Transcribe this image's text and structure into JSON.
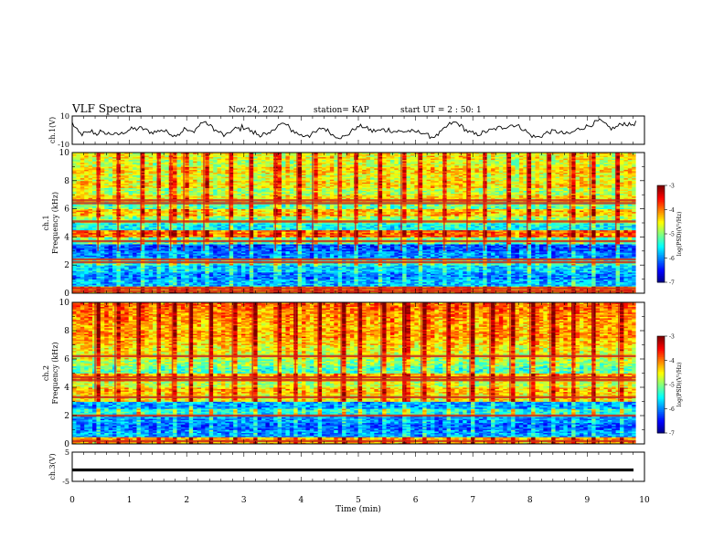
{
  "header": {
    "title": "VLF Spectra",
    "date": "Nov.24, 2022",
    "station": "station= KAP",
    "start": "start  UT =   2 : 50: 1"
  },
  "chart_data": [
    {
      "id": "ch1-waveform",
      "type": "line",
      "ylabel": "ch.1(V)",
      "ylim": [
        -10,
        10
      ],
      "yticks": [
        "10",
        "-10"
      ],
      "xlim": [
        0,
        10
      ],
      "series": [
        {
          "values": [
            5.1,
            3.2,
            1.5,
            -0.4,
            -1.8,
            -2.5,
            -2.9,
            -2.4,
            -1.8,
            -2.6,
            -1.9,
            -1.0,
            -0.7,
            -1.7,
            -2.3,
            -2.8,
            -1.7,
            -0.8,
            -2.1,
            -2.2,
            -1.6,
            -2.8,
            -2.3,
            -2.5,
            -2.4,
            -2.6,
            -3.1,
            -3.2,
            -3.0,
            -2.5,
            -2.5,
            -1.6,
            -1.0,
            -0.9,
            0.2,
            0.3,
            0.8,
            0.9,
            0.9,
            0.7,
            1.3,
            1.3,
            1.3,
            0.9,
            0.7,
            -0.2,
            -0.6,
            -1.1,
            -1.6,
            -1.4,
            -1.1,
            -1.2,
            -0.8,
            -0.1,
            0.5,
            -0.4,
            -0.8,
            -1.1,
            -1.3,
            -1.6,
            -2.6,
            -3.4,
            -4.1,
            -2.9,
            -2.3,
            -2.9,
            -1.5,
            -0.2,
            0.9,
            1.0,
            -0.6,
            -1.3,
            -0.8,
            -1.4,
            -0.3,
            0.8,
            2.3,
            2.8,
            4.7,
            5.9,
            5.7,
            4.6,
            4.8,
            3.2,
            2.7,
            2.3,
            1.0,
            -0.3,
            -1.2,
            -1.2,
            -1.8,
            -2.8,
            -3.8,
            -3.9,
            -3.4,
            -1.8,
            -0.8,
            -0.6,
            0.2,
            1.0,
            1.2,
            1.2,
            0.8,
            2.5,
            1.8,
            1.7,
            1.6,
            0.7,
            -0.4,
            -1.4,
            -1.9,
            -1.4,
            -2.8,
            -2.9,
            -3.3,
            -3.5,
            -2.5,
            -3.2,
            -4.1,
            -3.4,
            -2.5,
            -1.2,
            0.8,
            1.7,
            2.5,
            3.7,
            3.6,
            4.3,
            4.4,
            4.5,
            3.1,
            2.7,
            1.0,
            0.0,
            -0.2,
            -1.2,
            -1.9,
            -2.6,
            -3.0,
            -3.6,
            -4.1,
            -4.0,
            -2.9,
            -3.0,
            -3.9,
            -3.2,
            -2.5,
            -1.9,
            -1.6,
            -0.8,
            0.6,
            1.4,
            1.5,
            1.1,
            0.3,
            -0.4,
            -1.2,
            -1.9,
            -3.4,
            -4.0,
            -4.1,
            -4.3,
            -4.8,
            -4.8,
            -4.8,
            -4.8,
            -4.3,
            -3.2,
            -2.3,
            -0.9,
            -0.3,
            0.9,
            1.7,
            1.4,
            2.7,
            2.6,
            2.6,
            2.6,
            1.5,
            1.1,
            0.6,
            0.1,
            -0.9,
            -0.4,
            -0.4,
            -0.2,
            -0.5,
            -0.2,
            0.3,
            0.4,
            -0.4,
            0.1,
            0.5,
            0.1,
            -0.7,
            -0.8,
            -0.8,
            -0.9,
            -0.7,
            -1.1,
            -1.0,
            -1.0,
            -0.9,
            -0.9,
            -0.4,
            -0.6,
            -0.8,
            -1.5,
            -1.5,
            -1.1,
            -1.4,
            -1.4,
            -1.2,
            -2.1,
            -2.2,
            -3.6,
            -3.8,
            -4.4,
            -4.5,
            -4.9,
            -3.9,
            -4.2,
            -3.1,
            -2.1,
            -1.1,
            -0.3,
            1.2,
            2.2,
            3.2,
            4.2,
            4.8,
            4.8,
            5.4,
            5.3,
            4.4,
            4.0,
            2.8,
            2.3,
            0.8,
            0.0,
            -0.9,
            -1.5,
            -2.0,
            -2.1,
            -3.0,
            -3.0,
            -3.0,
            -2.6,
            -2.5,
            -1.7,
            -1.6,
            -1.1,
            -0.5,
            -0.4,
            -0.1,
            0.1,
            0.6,
            1.0,
            1.2,
            1.8,
            1.7,
            1.6,
            2.5,
            2.4,
            2.6,
            3.2,
            3.7,
            3.6,
            3.7,
            3.4,
            3.1,
            2.6,
            1.9,
            1.3,
            0.5,
            -0.4,
            -1.4,
            -2.5,
            -3.5,
            -3.9,
            -4.5,
            -4.8,
            -4.9,
            -4.8,
            -4.4,
            -3.9,
            -3.1,
            -2.4,
            -1.8,
            -1.6,
            -1.2,
            -1.1,
            -0.8,
            -0.8,
            -1.1,
            -1.3,
            -1.8,
            -2.0,
            -2.3,
            -2.4,
            -2.7,
            -2.6,
            -2.4,
            -2.0,
            -1.1,
            -0.5,
            0.1,
            0.8,
            1.0,
            1.4,
            1.9,
            2.1,
            2.6,
            3.0,
            3.3,
            3.9,
            4.5,
            5.2,
            5.8,
            6.3,
            6.4,
            6.1,
            5.2,
            4.2,
            3.2,
            2.4,
            1.8,
            1.3,
            1.2,
            1.6,
            2.1,
            2.8,
            3.5,
            4.3,
            4.7,
            4.8,
            4.6,
            4.1,
            3.8,
            3.8,
            4.1,
            4.6,
            5.2
          ]
        }
      ]
    },
    {
      "id": "ch1-spectrogram",
      "type": "heatmap",
      "ylabel": "ch.1\nFrequency  (kHz)",
      "xlim": [
        0,
        10
      ],
      "ylim": [
        0,
        10
      ],
      "yticks": [
        0,
        2,
        4,
        6,
        8,
        10
      ],
      "freq_bins_khz": [
        0.0,
        0.5,
        1.0,
        1.5,
        2.0,
        2.5,
        3.0,
        3.5,
        4.0,
        4.5,
        5.0,
        5.5,
        6.0,
        6.5,
        7.0,
        7.5,
        8.0,
        8.5,
        9.0,
        9.5
      ],
      "band_log_psd": [
        -4.0,
        -5.8,
        -6.0,
        -5.7,
        -5.3,
        -6.0,
        -6.2,
        -5.1,
        -3.9,
        -5.5,
        -4.9,
        -4.3,
        -5.1,
        -4.4,
        -4.8,
        -4.4,
        -4.6,
        -4.4,
        -4.7,
        -4.5
      ],
      "narrowband_lines_khz": [
        0.15,
        0.35,
        2.2,
        2.4,
        3.7,
        5.1,
        6.4,
        6.6
      ],
      "impulse_times_min": [
        0.45,
        0.8,
        1.2,
        1.5,
        1.72,
        1.95,
        2.3,
        2.75,
        3.1,
        3.55,
        3.93,
        4.2,
        4.65,
        4.95,
        5.35,
        5.75,
        6.05,
        6.5,
        6.9,
        7.2,
        7.6,
        7.95,
        8.3,
        8.7,
        9.05,
        9.5
      ],
      "colorbar": {
        "label": "log(PSD)(V²/Hz)",
        "range": [
          -7,
          -3
        ],
        "ticks": [
          "-3",
          "-4",
          "-5",
          "-6",
          "-7"
        ]
      }
    },
    {
      "id": "ch2-spectrogram",
      "type": "heatmap",
      "ylabel": "ch.2\nFrequency  (kHz)",
      "xlim": [
        0,
        10
      ],
      "ylim": [
        0,
        10
      ],
      "yticks": [
        0,
        2,
        4,
        6,
        8,
        10
      ],
      "freq_bins_khz": [
        0.0,
        0.5,
        1.0,
        1.5,
        2.0,
        2.5,
        3.0,
        3.5,
        4.0,
        4.5,
        5.0,
        5.5,
        6.0,
        6.5,
        7.0,
        7.5,
        8.0,
        8.5,
        9.0,
        9.5
      ],
      "band_log_psd": [
        -4.2,
        -5.9,
        -6.1,
        -5.9,
        -5.4,
        -5.9,
        -4.5,
        -4.3,
        -4.7,
        -4.2,
        -5.2,
        -4.9,
        -4.6,
        -4.5,
        -4.3,
        -4.1,
        -4.2,
        -4.1,
        -4.0,
        -3.9
      ],
      "narrowband_lines_khz": [
        0.2,
        2.0,
        3.3,
        4.5,
        4.7,
        6.2
      ],
      "impulse_times_min": [
        0.4,
        0.75,
        1.15,
        1.5,
        1.75,
        2.05,
        2.4,
        2.8,
        3.15,
        3.6,
        3.9,
        4.3,
        4.7,
        5.0,
        5.4,
        5.8,
        6.1,
        6.55,
        6.95,
        7.3,
        7.65,
        8.0,
        8.35,
        8.75,
        9.1,
        9.55
      ],
      "colorbar": {
        "label": "log(PSD)(V²/Hz)",
        "range": [
          -7,
          -3
        ],
        "ticks": [
          "-3",
          "-4",
          "-5",
          "-6",
          "-7"
        ]
      }
    },
    {
      "id": "ch3-waveform",
      "type": "line",
      "ylabel": "ch.3(V)",
      "ylim": [
        -5,
        5
      ],
      "yticks": [
        "5",
        "-5"
      ],
      "xlim": [
        0,
        10
      ],
      "xlabel": "Time  (min)",
      "xticks": [
        "0",
        "1",
        "2",
        "3",
        "4",
        "5",
        "6",
        "7",
        "8",
        "9",
        "10"
      ],
      "series": [
        {
          "values": [
            -1.1,
            -1.1,
            -1.1,
            -1.1,
            -1.1,
            -1.1,
            -1.1,
            -1.1,
            -1.1,
            -1.1,
            -1.1
          ],
          "band": 0.5
        }
      ]
    }
  ]
}
